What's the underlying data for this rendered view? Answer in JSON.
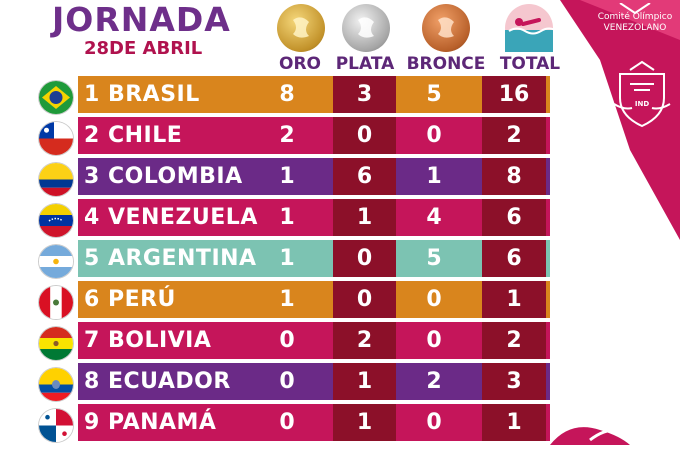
{
  "header": {
    "title": "JORNADA",
    "date": "28DE ABRIL"
  },
  "columns": {
    "oro": "ORO",
    "plata": "PLATA",
    "bronce": "BRONCE",
    "total": "TOTAL"
  },
  "org": {
    "name_line1": "Comité Olímpico",
    "name_line2": "Venezolano",
    "badge": "IND"
  },
  "colors": {
    "orange": "#d9851d",
    "magenta": "#c5155a",
    "purple": "#6b2a87",
    "teal": "#7cc3b2",
    "dark_red": "#8c1029"
  },
  "rows": [
    {
      "label": "1 BRASIL",
      "oro": "8",
      "plata": "3",
      "bronce": "5",
      "total": "16"
    },
    {
      "label": "2 CHILE",
      "oro": "2",
      "plata": "0",
      "bronce": "0",
      "total": "2"
    },
    {
      "label": "3 COLOMBIA",
      "oro": "1",
      "plata": "6",
      "bronce": "1",
      "total": "8"
    },
    {
      "label": "4 VENEZUELA",
      "oro": "1",
      "plata": "1",
      "bronce": "4",
      "total": "6"
    },
    {
      "label": "5 ARGENTINA",
      "oro": "1",
      "plata": "0",
      "bronce": "5",
      "total": "6"
    },
    {
      "label": "6 PERÚ",
      "oro": "1",
      "plata": "0",
      "bronce": "0",
      "total": "1"
    },
    {
      "label": "7 BOLIVIA",
      "oro": "0",
      "plata": "2",
      "bronce": "0",
      "total": "2"
    },
    {
      "label": "8 ECUADOR",
      "oro": "0",
      "plata": "1",
      "bronce": "2",
      "total": "3"
    },
    {
      "label": "9 PANAMÁ",
      "oro": "0",
      "plata": "1",
      "bronce": "0",
      "total": "1"
    }
  ]
}
